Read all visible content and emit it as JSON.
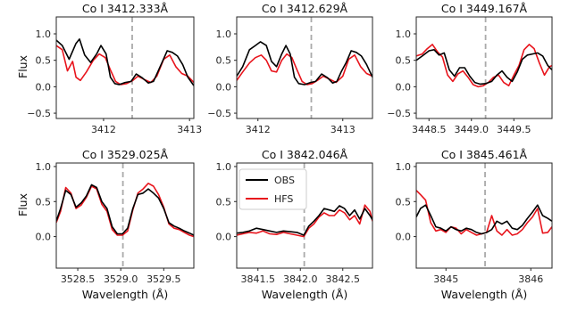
{
  "figure": {
    "ylabel": "Flux",
    "xlabel": "Wavelength (Å)"
  },
  "legend": {
    "entries": [
      {
        "name": "OBS",
        "color": "#000000"
      },
      {
        "name": "HFS",
        "color": "#e8141c"
      }
    ],
    "placement": "upper-left of panel 5"
  },
  "colors": {
    "obs": "#000000",
    "hfs": "#e8141c",
    "marker_line": "#aaaaaa"
  },
  "chart_data": [
    {
      "type": "line",
      "title": "Co I 3412.333Å",
      "title_parts": {
        "species": "Co I",
        "wavelength": "3412.333"
      },
      "xlim": [
        3411.45,
        3413.05
      ],
      "ylim": [
        -0.6,
        1.32
      ],
      "xticks": [
        3412,
        3413
      ],
      "xtick_labels": [
        "3412",
        "3413"
      ],
      "yticks": [
        -0.5,
        0.0,
        0.5,
        1.0
      ],
      "ytick_labels": [
        "−0.5",
        "0.0",
        "0.5",
        "1.0"
      ],
      "marker_line": 3412.333,
      "series": [
        {
          "name": "OBS",
          "color": "#000000",
          "x": [
            3411.45,
            3411.52,
            3411.6,
            3411.68,
            3411.72,
            3411.78,
            3411.85,
            3411.92,
            3411.97,
            3412.03,
            3412.08,
            3412.13,
            3412.18,
            3412.25,
            3412.32,
            3412.38,
            3412.45,
            3412.52,
            3412.58,
            3412.63,
            3412.68,
            3412.74,
            3412.8,
            3412.86,
            3412.92,
            3412.98,
            3413.05
          ],
          "y": [
            0.88,
            0.78,
            0.52,
            0.82,
            0.9,
            0.6,
            0.46,
            0.62,
            0.78,
            0.62,
            0.18,
            0.06,
            0.04,
            0.08,
            0.1,
            0.24,
            0.17,
            0.07,
            0.1,
            0.28,
            0.46,
            0.68,
            0.65,
            0.58,
            0.42,
            0.18,
            0.02
          ]
        },
        {
          "name": "HFS",
          "color": "#e8141c",
          "x": [
            3411.45,
            3411.52,
            3411.58,
            3411.64,
            3411.68,
            3411.73,
            3411.8,
            3411.88,
            3411.95,
            3412.02,
            3412.08,
            3412.14,
            3412.2,
            3412.27,
            3412.34,
            3412.4,
            3412.47,
            3412.55,
            3412.62,
            3412.7,
            3412.77,
            3412.84,
            3412.91,
            3412.98,
            3413.05
          ],
          "y": [
            0.78,
            0.7,
            0.3,
            0.48,
            0.18,
            0.12,
            0.28,
            0.5,
            0.62,
            0.55,
            0.32,
            0.1,
            0.04,
            0.06,
            0.12,
            0.2,
            0.14,
            0.08,
            0.2,
            0.52,
            0.6,
            0.38,
            0.25,
            0.2,
            0.08
          ]
        }
      ]
    },
    {
      "type": "line",
      "title": "Co I 3412.629Å",
      "title_parts": {
        "species": "Co I",
        "wavelength": "3412.629"
      },
      "xlim": [
        3411.75,
        3413.35
      ],
      "ylim": [
        -0.6,
        1.32
      ],
      "xticks": [
        3412,
        3413
      ],
      "xtick_labels": [
        "3412",
        "3413"
      ],
      "yticks": [
        -0.5,
        0.0,
        0.5,
        1.0
      ],
      "ytick_labels": [
        "−0.5",
        "0.0",
        "0.5",
        "1.0"
      ],
      "marker_line": 3412.629,
      "series": [
        {
          "name": "OBS",
          "color": "#000000",
          "x": [
            3411.75,
            3411.82,
            3411.9,
            3411.97,
            3412.03,
            3412.1,
            3412.16,
            3412.22,
            3412.28,
            3412.33,
            3412.38,
            3412.43,
            3412.48,
            3412.55,
            3412.62,
            3412.68,
            3412.75,
            3412.82,
            3412.88,
            3412.93,
            3412.98,
            3413.04,
            3413.1,
            3413.16,
            3413.22,
            3413.28,
            3413.35
          ],
          "y": [
            0.2,
            0.38,
            0.7,
            0.78,
            0.85,
            0.78,
            0.48,
            0.38,
            0.62,
            0.78,
            0.62,
            0.18,
            0.06,
            0.04,
            0.08,
            0.1,
            0.24,
            0.17,
            0.07,
            0.1,
            0.28,
            0.46,
            0.68,
            0.65,
            0.58,
            0.42,
            0.18
          ]
        },
        {
          "name": "HFS",
          "color": "#e8141c",
          "x": [
            3411.75,
            3411.82,
            3411.9,
            3411.97,
            3412.04,
            3412.1,
            3412.16,
            3412.22,
            3412.28,
            3412.34,
            3412.4,
            3412.46,
            3412.52,
            3412.58,
            3412.64,
            3412.7,
            3412.77,
            3412.85,
            3412.92,
            3413.0,
            3413.07,
            3413.14,
            3413.21,
            3413.28,
            3413.35
          ],
          "y": [
            0.12,
            0.28,
            0.45,
            0.55,
            0.6,
            0.5,
            0.3,
            0.28,
            0.5,
            0.62,
            0.55,
            0.32,
            0.1,
            0.04,
            0.06,
            0.12,
            0.2,
            0.14,
            0.08,
            0.2,
            0.52,
            0.6,
            0.38,
            0.25,
            0.2
          ]
        }
      ]
    },
    {
      "type": "line",
      "title": "Co I 3449.167Å",
      "title_parts": {
        "species": "Co I",
        "wavelength": "3449.167"
      },
      "xlim": [
        3448.35,
        3449.95
      ],
      "ylim": [
        -0.6,
        1.32
      ],
      "xticks": [
        3448.5,
        3449.0,
        3449.5
      ],
      "xtick_labels": [
        "3448.5",
        "3449.0",
        "3449.5"
      ],
      "yticks": [
        -0.5,
        0.0,
        0.5,
        1.0
      ],
      "ytick_labels": [
        "−0.5",
        "0.0",
        "0.5",
        "1.0"
      ],
      "marker_line": 3449.167,
      "series": [
        {
          "name": "OBS",
          "color": "#000000",
          "x": [
            3448.35,
            3448.42,
            3448.5,
            3448.56,
            3448.62,
            3448.68,
            3448.74,
            3448.8,
            3448.86,
            3448.92,
            3448.98,
            3449.04,
            3449.1,
            3449.17,
            3449.24,
            3449.3,
            3449.36,
            3449.42,
            3449.48,
            3449.54,
            3449.6,
            3449.66,
            3449.72,
            3449.78,
            3449.84,
            3449.9,
            3449.95
          ],
          "y": [
            0.5,
            0.58,
            0.68,
            0.7,
            0.6,
            0.64,
            0.32,
            0.2,
            0.36,
            0.36,
            0.2,
            0.08,
            0.05,
            0.06,
            0.1,
            0.22,
            0.3,
            0.18,
            0.1,
            0.28,
            0.52,
            0.6,
            0.62,
            0.64,
            0.58,
            0.4,
            0.32
          ]
        },
        {
          "name": "HFS",
          "color": "#e8141c",
          "x": [
            3448.35,
            3448.42,
            3448.48,
            3448.54,
            3448.6,
            3448.66,
            3448.72,
            3448.78,
            3448.84,
            3448.9,
            3448.96,
            3449.02,
            3449.08,
            3449.14,
            3449.2,
            3449.26,
            3449.32,
            3449.38,
            3449.44,
            3449.5,
            3449.56,
            3449.62,
            3449.68,
            3449.74,
            3449.8,
            3449.86,
            3449.92,
            3449.95
          ],
          "y": [
            0.58,
            0.62,
            0.72,
            0.8,
            0.66,
            0.56,
            0.22,
            0.1,
            0.24,
            0.3,
            0.18,
            0.04,
            0.0,
            0.02,
            0.08,
            0.18,
            0.22,
            0.08,
            0.02,
            0.22,
            0.4,
            0.7,
            0.8,
            0.72,
            0.45,
            0.22,
            0.38,
            0.4
          ]
        }
      ]
    },
    {
      "type": "line",
      "title": "Co I 3529.025Å",
      "title_parts": {
        "species": "Co I",
        "wavelength": "3529.025"
      },
      "xlim": [
        3528.25,
        3529.85
      ],
      "ylim": [
        -0.45,
        1.05
      ],
      "xticks": [
        3528.5,
        3529.0,
        3529.5
      ],
      "xtick_labels": [
        "3528.5",
        "3529.0",
        "3529.5"
      ],
      "yticks": [
        0.0,
        0.5,
        1.0
      ],
      "ytick_labels": [
        "0.0",
        "0.5",
        "1.0"
      ],
      "marker_line": 3529.025,
      "series": [
        {
          "name": "OBS",
          "color": "#000000",
          "x": [
            3528.25,
            3528.3,
            3528.36,
            3528.42,
            3528.48,
            3528.54,
            3528.6,
            3528.66,
            3528.72,
            3528.78,
            3528.84,
            3528.9,
            3528.96,
            3529.02,
            3529.08,
            3529.14,
            3529.2,
            3529.26,
            3529.32,
            3529.38,
            3529.44,
            3529.5,
            3529.56,
            3529.62,
            3529.68,
            3529.74,
            3529.8,
            3529.85
          ],
          "y": [
            0.22,
            0.4,
            0.66,
            0.6,
            0.42,
            0.48,
            0.58,
            0.74,
            0.7,
            0.5,
            0.4,
            0.14,
            0.04,
            0.04,
            0.12,
            0.4,
            0.6,
            0.62,
            0.68,
            0.62,
            0.55,
            0.4,
            0.2,
            0.15,
            0.12,
            0.08,
            0.05,
            0.02
          ]
        },
        {
          "name": "HFS",
          "color": "#e8141c",
          "x": [
            3528.25,
            3528.3,
            3528.36,
            3528.42,
            3528.48,
            3528.54,
            3528.6,
            3528.66,
            3528.72,
            3528.78,
            3528.84,
            3528.9,
            3528.96,
            3529.02,
            3529.08,
            3529.14,
            3529.2,
            3529.26,
            3529.32,
            3529.38,
            3529.44,
            3529.5,
            3529.56,
            3529.62,
            3529.68,
            3529.74,
            3529.8,
            3529.85
          ],
          "y": [
            0.2,
            0.36,
            0.7,
            0.62,
            0.4,
            0.45,
            0.56,
            0.72,
            0.68,
            0.46,
            0.36,
            0.1,
            0.02,
            0.02,
            0.08,
            0.38,
            0.62,
            0.68,
            0.76,
            0.72,
            0.6,
            0.42,
            0.18,
            0.12,
            0.1,
            0.06,
            0.02,
            0.0
          ]
        }
      ]
    },
    {
      "type": "line",
      "title": "Co I 3842.046Å",
      "title_parts": {
        "species": "Co I",
        "wavelength": "3842.046"
      },
      "xlim": [
        3841.25,
        3842.85
      ],
      "ylim": [
        -0.45,
        1.05
      ],
      "xticks": [
        3841.5,
        3842.0,
        3842.5
      ],
      "xtick_labels": [
        "3841.5",
        "3842.0",
        "3842.5"
      ],
      "yticks": [
        0.0,
        0.5,
        1.0
      ],
      "ytick_labels": [
        "0.0",
        "0.5",
        "1.0"
      ],
      "marker_line": 3842.046,
      "series": [
        {
          "name": "OBS",
          "color": "#000000",
          "x": [
            3841.25,
            3841.32,
            3841.4,
            3841.48,
            3841.56,
            3841.64,
            3841.72,
            3841.8,
            3841.88,
            3841.96,
            3842.04,
            3842.1,
            3842.16,
            3842.22,
            3842.28,
            3842.34,
            3842.4,
            3842.46,
            3842.52,
            3842.58,
            3842.64,
            3842.7,
            3842.76,
            3842.82,
            3842.85
          ],
          "y": [
            0.05,
            0.06,
            0.08,
            0.12,
            0.1,
            0.08,
            0.06,
            0.08,
            0.07,
            0.06,
            0.02,
            0.15,
            0.22,
            0.3,
            0.4,
            0.38,
            0.36,
            0.44,
            0.4,
            0.3,
            0.38,
            0.25,
            0.4,
            0.3,
            0.24
          ]
        },
        {
          "name": "HFS",
          "color": "#e8141c",
          "x": [
            3841.25,
            3841.32,
            3841.4,
            3841.48,
            3841.56,
            3841.64,
            3841.72,
            3841.8,
            3841.88,
            3841.96,
            3842.04,
            3842.1,
            3842.16,
            3842.22,
            3842.28,
            3842.34,
            3842.4,
            3842.46,
            3842.52,
            3842.58,
            3842.64,
            3842.7,
            3842.76,
            3842.82,
            3842.85
          ],
          "y": [
            0.02,
            0.04,
            0.06,
            0.05,
            0.08,
            0.04,
            0.03,
            0.06,
            0.04,
            0.02,
            0.0,
            0.12,
            0.18,
            0.28,
            0.34,
            0.3,
            0.3,
            0.38,
            0.34,
            0.24,
            0.3,
            0.18,
            0.45,
            0.36,
            0.22
          ]
        }
      ]
    },
    {
      "type": "line",
      "title": "Co I 3845.461Å",
      "title_parts": {
        "species": "Co I",
        "wavelength": "3845.461"
      },
      "xlim": [
        3844.65,
        3846.25
      ],
      "ylim": [
        -0.45,
        1.05
      ],
      "xticks": [
        3845,
        3846
      ],
      "xtick_labels": [
        "3845",
        "3846"
      ],
      "yticks": [
        0.0,
        0.5,
        1.0
      ],
      "ytick_labels": [
        "0.0",
        "0.5",
        "1.0"
      ],
      "marker_line": 3845.461,
      "series": [
        {
          "name": "OBS",
          "color": "#000000",
          "x": [
            3844.65,
            3844.7,
            3844.76,
            3844.82,
            3844.88,
            3844.94,
            3845.0,
            3845.06,
            3845.12,
            3845.18,
            3845.24,
            3845.3,
            3845.36,
            3845.42,
            3845.48,
            3845.54,
            3845.6,
            3845.66,
            3845.72,
            3845.78,
            3845.84,
            3845.9,
            3845.96,
            3846.02,
            3846.08,
            3846.14,
            3846.2,
            3846.25
          ],
          "y": [
            0.28,
            0.4,
            0.45,
            0.3,
            0.14,
            0.12,
            0.08,
            0.14,
            0.1,
            0.08,
            0.12,
            0.1,
            0.06,
            0.04,
            0.06,
            0.1,
            0.22,
            0.18,
            0.22,
            0.12,
            0.1,
            0.16,
            0.26,
            0.35,
            0.45,
            0.3,
            0.26,
            0.22
          ]
        },
        {
          "name": "HFS",
          "color": "#e8141c",
          "x": [
            3844.65,
            3844.7,
            3844.76,
            3844.82,
            3844.88,
            3844.94,
            3845.0,
            3845.06,
            3845.12,
            3845.18,
            3845.24,
            3845.3,
            3845.36,
            3845.42,
            3845.48,
            3845.54,
            3845.6,
            3845.66,
            3845.72,
            3845.78,
            3845.84,
            3845.9,
            3845.96,
            3846.02,
            3846.08,
            3846.14,
            3846.2,
            3846.25
          ],
          "y": [
            0.66,
            0.6,
            0.52,
            0.2,
            0.08,
            0.1,
            0.06,
            0.14,
            0.12,
            0.04,
            0.1,
            0.06,
            0.02,
            0.04,
            0.06,
            0.3,
            0.08,
            0.02,
            0.1,
            0.02,
            0.04,
            0.1,
            0.2,
            0.28,
            0.4,
            0.05,
            0.06,
            0.14
          ]
        }
      ]
    }
  ]
}
